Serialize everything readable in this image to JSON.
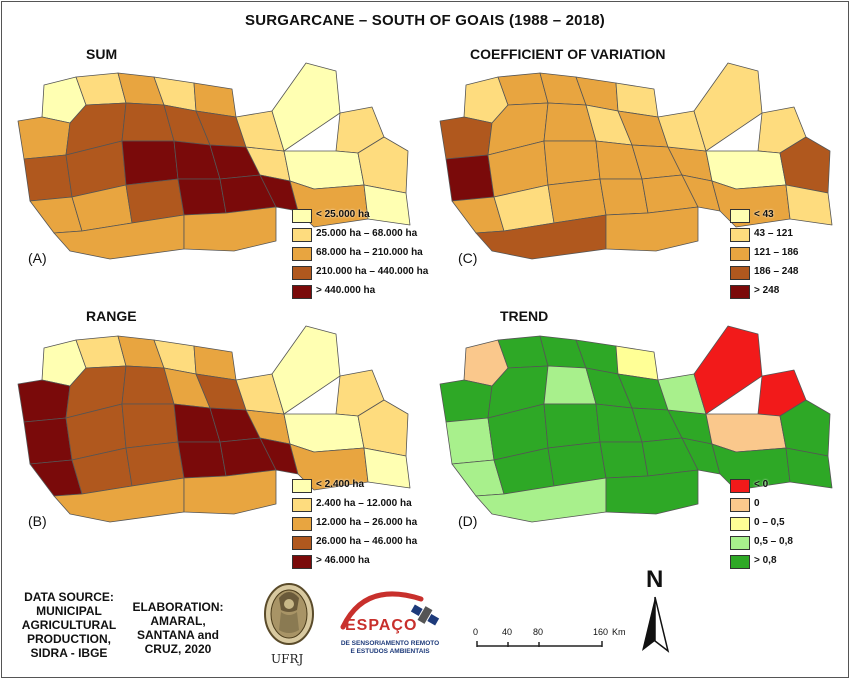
{
  "title": "SURGARCANE  – SOUTH OF GOAIS (1988 – 2018)",
  "panels": {
    "sum": {
      "title": "SUM",
      "letter": "(A)",
      "legend": [
        {
          "label": "< 25.000 ha",
          "color": "#ffffb2"
        },
        {
          "label": "25.000 ha – 68.000 ha",
          "color": "#fedc7e"
        },
        {
          "label": "68.000 ha – 210.000 ha",
          "color": "#e8a540"
        },
        {
          "label": "210.000 ha – 440.000 ha",
          "color": "#b0581e"
        },
        {
          "label": "> 440.000 ha",
          "color": "#7a0a0a"
        }
      ]
    },
    "cv": {
      "title": "COEFFICIENT OF VARIATION",
      "letter": "(C)",
      "legend": [
        {
          "label": "< 43",
          "color": "#ffffb2"
        },
        {
          "label": "43 – 121",
          "color": "#fedc7e"
        },
        {
          "label": "121 – 186",
          "color": "#e8a540"
        },
        {
          "label": "186 – 248",
          "color": "#b0581e"
        },
        {
          "label": "> 248",
          "color": "#7a0a0a"
        }
      ]
    },
    "range": {
      "title": "RANGE",
      "letter": "(B)",
      "legend": [
        {
          "label": "< 2.400 ha",
          "color": "#ffffb2"
        },
        {
          "label": "2.400 ha – 12.000 ha",
          "color": "#fedc7e"
        },
        {
          "label": "12.000 ha – 26.000 ha",
          "color": "#e8a540"
        },
        {
          "label": "26.000 ha – 46.000 ha",
          "color": "#b0581e"
        },
        {
          "label": "> 46.000 ha",
          "color": "#7a0a0a"
        }
      ]
    },
    "trend": {
      "title": "TREND",
      "letter": "(D)",
      "legend": [
        {
          "label": "< 0",
          "color": "#f21a1a"
        },
        {
          "label": "0",
          "color": "#fac88c"
        },
        {
          "label": "0 – 0,5",
          "color": "#ffff96"
        },
        {
          "label": "0,5 – 0,8",
          "color": "#a8f08c"
        },
        {
          "label": "> 0,8",
          "color": "#2ea826"
        }
      ]
    }
  },
  "credits": {
    "data_source": [
      "DATA SOURCE:",
      "MUNICIPAL",
      "AGRICULTURAL",
      "PRODUCTION,",
      "SIDRA - IBGE"
    ],
    "elaboration": [
      "ELABORATION:",
      "AMARAL,",
      "SANTANA and",
      "CRUZ, 2020"
    ],
    "ufrj": "UFRJ",
    "espaco": "ESPAÇO",
    "espaco_sub": [
      "DE SENSORIAMENTO REMOTO",
      "E ESTUDOS AMBIENTAIS"
    ]
  },
  "scale": {
    "ticks": [
      "0",
      "40",
      "80",
      "160"
    ],
    "unit": "Km"
  },
  "north": "N"
}
